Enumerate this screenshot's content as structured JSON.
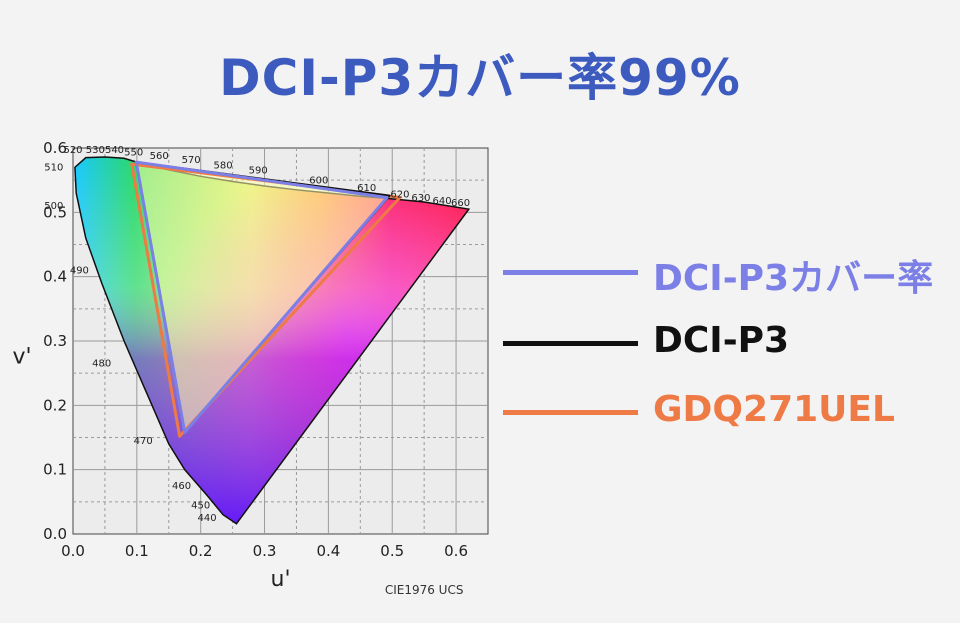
{
  "title": {
    "text": "DCI-P3カバー率99%",
    "color": "#3d5bbf"
  },
  "chart_data": {
    "type": "scatter",
    "xlabel": "u'",
    "ylabel": "v'",
    "caption": "CIE1976 UCS",
    "xlim": [
      0.0,
      0.65
    ],
    "ylim": [
      0.0,
      0.6
    ],
    "xticks": [
      "0.0",
      "0.1",
      "0.2",
      "0.3",
      "0.4",
      "0.5",
      "0.6"
    ],
    "yticks": [
      "0.0",
      "0.1",
      "0.2",
      "0.3",
      "0.4",
      "0.5",
      "0.6"
    ],
    "grid": true,
    "wavelength_labels": [
      {
        "text": "440",
        "u": 0.21,
        "v": 0.02
      },
      {
        "text": "450",
        "u": 0.2,
        "v": 0.04
      },
      {
        "text": "460",
        "u": 0.17,
        "v": 0.07
      },
      {
        "text": "470",
        "u": 0.11,
        "v": 0.14
      },
      {
        "text": "480",
        "u": 0.045,
        "v": 0.26
      },
      {
        "text": "490",
        "u": 0.01,
        "v": 0.405
      },
      {
        "text": "500",
        "u": -0.03,
        "v": 0.505
      },
      {
        "text": "510",
        "u": -0.03,
        "v": 0.565
      },
      {
        "text": "520",
        "u": 0.0,
        "v": 0.592
      },
      {
        "text": "530",
        "u": 0.035,
        "v": 0.592
      },
      {
        "text": "540",
        "u": 0.065,
        "v": 0.592
      },
      {
        "text": "550",
        "u": 0.095,
        "v": 0.588
      },
      {
        "text": "560",
        "u": 0.135,
        "v": 0.583
      },
      {
        "text": "570",
        "u": 0.185,
        "v": 0.577
      },
      {
        "text": "580",
        "u": 0.235,
        "v": 0.568
      },
      {
        "text": "590",
        "u": 0.29,
        "v": 0.56
      },
      {
        "text": "600",
        "u": 0.385,
        "v": 0.545
      },
      {
        "text": "610",
        "u": 0.46,
        "v": 0.533
      },
      {
        "text": "620",
        "u": 0.512,
        "v": 0.523
      },
      {
        "text": "630",
        "u": 0.545,
        "v": 0.518
      },
      {
        "text": "640",
        "u": 0.578,
        "v": 0.513
      },
      {
        "text": "660",
        "u": 0.607,
        "v": 0.51
      }
    ],
    "series": [
      {
        "name": "DCI-P3カバー率",
        "color": "#7b7fe6",
        "points": [
          [
            0.099,
            0.578
          ],
          [
            0.492,
            0.523
          ],
          [
            0.175,
            0.158
          ]
        ]
      },
      {
        "name": "DCI-P3",
        "color": "#111111",
        "points": [
          [
            0.099,
            0.578
          ],
          [
            0.496,
            0.526
          ],
          [
            0.175,
            0.158
          ]
        ]
      },
      {
        "name": "GDQ271UEL",
        "color": "#ee7a45",
        "points": [
          [
            0.092,
            0.575
          ],
          [
            0.512,
            0.523
          ],
          [
            0.167,
            0.152
          ]
        ]
      }
    ],
    "spectral_locus": [
      [
        0.256,
        0.016
      ],
      [
        0.235,
        0.03
      ],
      [
        0.21,
        0.06
      ],
      [
        0.175,
        0.1
      ],
      [
        0.15,
        0.14
      ],
      [
        0.115,
        0.22
      ],
      [
        0.08,
        0.3
      ],
      [
        0.045,
        0.39
      ],
      [
        0.02,
        0.46
      ],
      [
        0.005,
        0.53
      ],
      [
        0.003,
        0.57
      ],
      [
        0.02,
        0.585
      ],
      [
        0.05,
        0.586
      ],
      [
        0.08,
        0.584
      ],
      [
        0.1,
        0.578
      ],
      [
        0.15,
        0.566
      ],
      [
        0.2,
        0.556
      ],
      [
        0.25,
        0.548
      ],
      [
        0.3,
        0.541
      ],
      [
        0.35,
        0.535
      ],
      [
        0.4,
        0.53
      ],
      [
        0.45,
        0.525
      ],
      [
        0.5,
        0.521
      ],
      [
        0.55,
        0.516
      ],
      [
        0.62,
        0.505
      ]
    ]
  }
}
